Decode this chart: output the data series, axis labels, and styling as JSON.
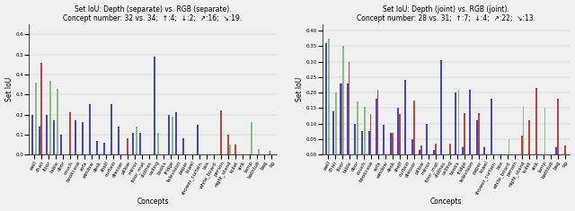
{
  "left": {
    "title": "Set IoU: Depth (separate) vs. RGB (separate).",
    "subtitle": "Concept number: 32 vs. 34;  ↑:4;  ↓:2;  ↗:16;  ↘:19.",
    "ylabel": "Set IoU",
    "xlabel": "Concepts",
    "ylim": [
      0.0,
      0.65
    ],
    "yticks": [
      0.0,
      0.1,
      0.2,
      0.3,
      0.4,
      0.5,
      0.6
    ],
    "concepts": [
      "wall",
      "chair",
      "floor",
      "table",
      "door",
      "couch",
      "bookcase",
      "sofa",
      "window",
      "desk",
      "shelf",
      "curtain",
      "dresser",
      "pillow",
      "mirror",
      "floor_mat",
      "clothes",
      "ceiling",
      "books",
      "fridge",
      "television",
      "paper",
      "towel",
      "shower_curtain",
      "box",
      "white_board",
      "person",
      "night_stand",
      "toilet",
      "sink",
      "lamp",
      "bathtub",
      "bag",
      "bg"
    ],
    "depth_vals": [
      0.2,
      0.14,
      0.2,
      0.17,
      0.1,
      0.0,
      0.17,
      0.16,
      0.25,
      0.07,
      0.06,
      0.25,
      0.14,
      0.0,
      0.11,
      0.11,
      0.0,
      0.49,
      0.0,
      0.2,
      0.21,
      0.08,
      0.0,
      0.15,
      0.0,
      0.0,
      0.0,
      0.0,
      0.0,
      0.0,
      0.0,
      0.0,
      0.0,
      0.02
    ],
    "rgb_vals": [
      0.0,
      0.46,
      0.0,
      0.0,
      0.0,
      0.21,
      0.0,
      0.0,
      0.0,
      0.0,
      0.0,
      0.0,
      0.0,
      0.08,
      0.0,
      0.0,
      0.0,
      0.0,
      0.0,
      0.0,
      0.0,
      0.0,
      0.0,
      0.0,
      0.0,
      0.0,
      0.22,
      0.1,
      0.05,
      0.0,
      0.0,
      0.0,
      0.0,
      0.0
    ],
    "green_vals": [
      0.36,
      0.0,
      0.37,
      0.33,
      0.0,
      0.0,
      0.0,
      0.0,
      0.0,
      0.0,
      0.0,
      0.0,
      0.0,
      0.0,
      0.14,
      0.0,
      0.0,
      0.11,
      0.0,
      0.19,
      0.0,
      0.0,
      0.0,
      0.0,
      0.0,
      0.0,
      0.0,
      0.05,
      0.0,
      0.0,
      0.16,
      0.03,
      0.0,
      0.0
    ]
  },
  "right": {
    "title": "Set IoU: Depth (joint) vs. RGB (joint).",
    "subtitle": "Concept number: 28 vs. 31;  ↑:7;  ↓:4;  ↗:22;  ↘:13.",
    "ylabel": "Set IoU",
    "xlabel": "Concepts",
    "ylim": [
      0.0,
      0.42
    ],
    "yticks": [
      0.0,
      0.05,
      0.1,
      0.15,
      0.2,
      0.25,
      0.3,
      0.35,
      0.4
    ],
    "concepts": [
      "wall",
      "chair",
      "floor",
      "table",
      "door",
      "couch",
      "bookcase",
      "sofa",
      "window",
      "desk",
      "shelf",
      "curtain",
      "dresser",
      "pillow",
      "mirror",
      "floor_mat",
      "clothes",
      "ceiling",
      "books",
      "fridge",
      "television",
      "paper",
      "towel",
      "shower_curtain",
      "box",
      "white_board",
      "person",
      "night_stand",
      "toilet",
      "sink",
      "lamp",
      "bathtub",
      "bag",
      "bg"
    ],
    "depth_vals": [
      0.36,
      0.14,
      0.23,
      0.23,
      0.1,
      0.075,
      0.075,
      0.18,
      0.095,
      0.07,
      0.15,
      0.24,
      0.05,
      0.015,
      0.1,
      0.015,
      0.305,
      0.0,
      0.2,
      0.025,
      0.21,
      0.11,
      0.025,
      0.18,
      0.0,
      0.0,
      0.0,
      0.0,
      0.0,
      0.0,
      0.0,
      0.0,
      0.025,
      0.0
    ],
    "rgb_vals": [
      0.0,
      0.0,
      0.23,
      0.3,
      0.0,
      0.0,
      0.13,
      0.21,
      0.0,
      0.07,
      0.13,
      0.0,
      0.175,
      0.03,
      0.0,
      0.035,
      0.0,
      0.035,
      0.0,
      0.135,
      0.0,
      0.135,
      0.0,
      0.0,
      0.0,
      0.0,
      0.0,
      0.06,
      0.11,
      0.215,
      0.0,
      0.0,
      0.18,
      0.03
    ],
    "green_vals": [
      0.375,
      0.2,
      0.35,
      0.0,
      0.17,
      0.155,
      0.0,
      0.0,
      0.0,
      0.0,
      0.0,
      0.0,
      0.0,
      0.0,
      0.0,
      0.0,
      0.0,
      0.0,
      0.21,
      0.0,
      0.0,
      0.0,
      0.0,
      0.0,
      0.0,
      0.05,
      0.0,
      0.155,
      0.0,
      0.0,
      0.15,
      0.0,
      0.0,
      0.0
    ]
  },
  "blue_color": "#3535b0",
  "red_color": "#b03535",
  "green_color": "#80b880",
  "bg_color": "#f0f0f0",
  "title_fontsize": 5.5,
  "label_fontsize": 5.5,
  "tick_fontsize": 4.0
}
